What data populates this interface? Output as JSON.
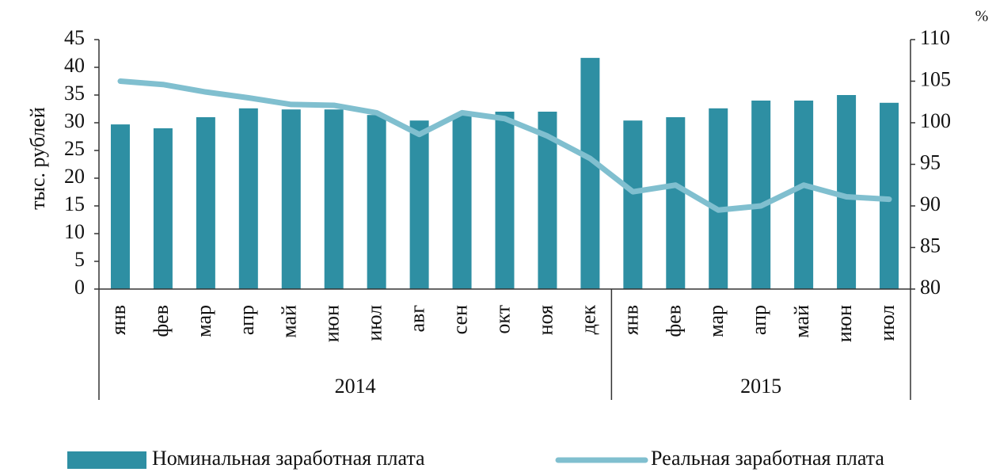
{
  "chart_data": {
    "type": "bar_line",
    "categories": [
      "янв",
      "фев",
      "мар",
      "апр",
      "май",
      "июн",
      "июл",
      "авг",
      "сен",
      "окт",
      "ноя",
      "дек",
      "янв",
      "фев",
      "мар",
      "апр",
      "май",
      "июн",
      "июл"
    ],
    "category_groups": [
      "2014",
      "2014",
      "2014",
      "2014",
      "2014",
      "2014",
      "2014",
      "2014",
      "2014",
      "2014",
      "2014",
      "2014",
      "2015",
      "2015",
      "2015",
      "2015",
      "2015",
      "2015",
      "2015"
    ],
    "y_label": "тыс. рублей",
    "y2_label": "%",
    "ylim": [
      0,
      45
    ],
    "yticks": [
      0,
      5,
      10,
      15,
      20,
      25,
      30,
      35,
      40,
      45
    ],
    "y2lim": [
      80,
      110
    ],
    "y2ticks": [
      80,
      85,
      90,
      95,
      100,
      105,
      110
    ],
    "series": [
      {
        "name": "Номинальная заработная плата",
        "type": "bar",
        "color": "#2e8fa3",
        "values": [
          29.7,
          29,
          31,
          32.6,
          32.4,
          32.4,
          31.4,
          30.4,
          31.4,
          32,
          32,
          41.7,
          30.4,
          31,
          32.6,
          34,
          34,
          35,
          33.6
        ]
      },
      {
        "name": "Реальная заработная плата",
        "type": "line",
        "axis": "y2",
        "color": "#80bfcf",
        "values": [
          105,
          104.6,
          103.7,
          103,
          102.2,
          102.1,
          101.2,
          98.6,
          101.2,
          100.5,
          98.4,
          95.7,
          91.7,
          92.5,
          89.5,
          90,
          92.5,
          91.1,
          90.8
        ]
      }
    ],
    "legend": "bottom"
  }
}
